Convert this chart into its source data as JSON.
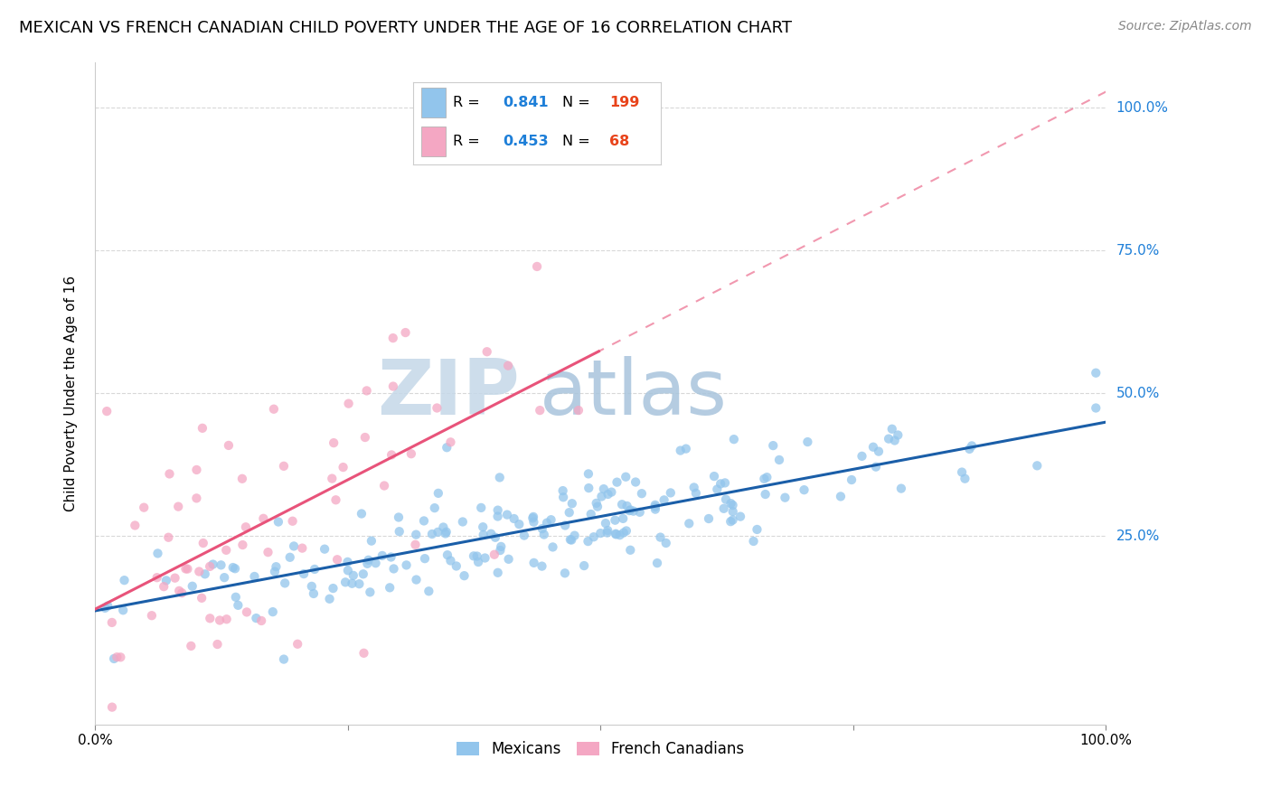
{
  "title": "MEXICAN VS FRENCH CANADIAN CHILD POVERTY UNDER THE AGE OF 16 CORRELATION CHART",
  "source": "Source: ZipAtlas.com",
  "ylabel": "Child Poverty Under the Age of 16",
  "xlim": [
    0,
    1
  ],
  "ylim": [
    -0.08,
    1.08
  ],
  "ytick_labels": [
    "25.0%",
    "50.0%",
    "75.0%",
    "100.0%"
  ],
  "ytick_positions": [
    0.25,
    0.5,
    0.75,
    1.0
  ],
  "mexican_color": "#92C5EC",
  "french_color": "#F4A7C3",
  "mexican_line_color": "#1A5EA8",
  "french_line_color": "#E8537A",
  "mexican_R": 0.841,
  "mexican_N": 199,
  "french_R": 0.453,
  "french_N": 68,
  "legend_R_color": "#1E7FD8",
  "legend_N_color": "#E8431A",
  "watermark_zip_color": "#C8D8E8",
  "watermark_atlas_color": "#A8C4DC",
  "background_color": "#FFFFFF",
  "grid_color": "#D8D8D8",
  "title_fontsize": 13,
  "axis_label_fontsize": 11,
  "tick_label_fontsize": 11,
  "source_fontsize": 10,
  "seed": 42
}
